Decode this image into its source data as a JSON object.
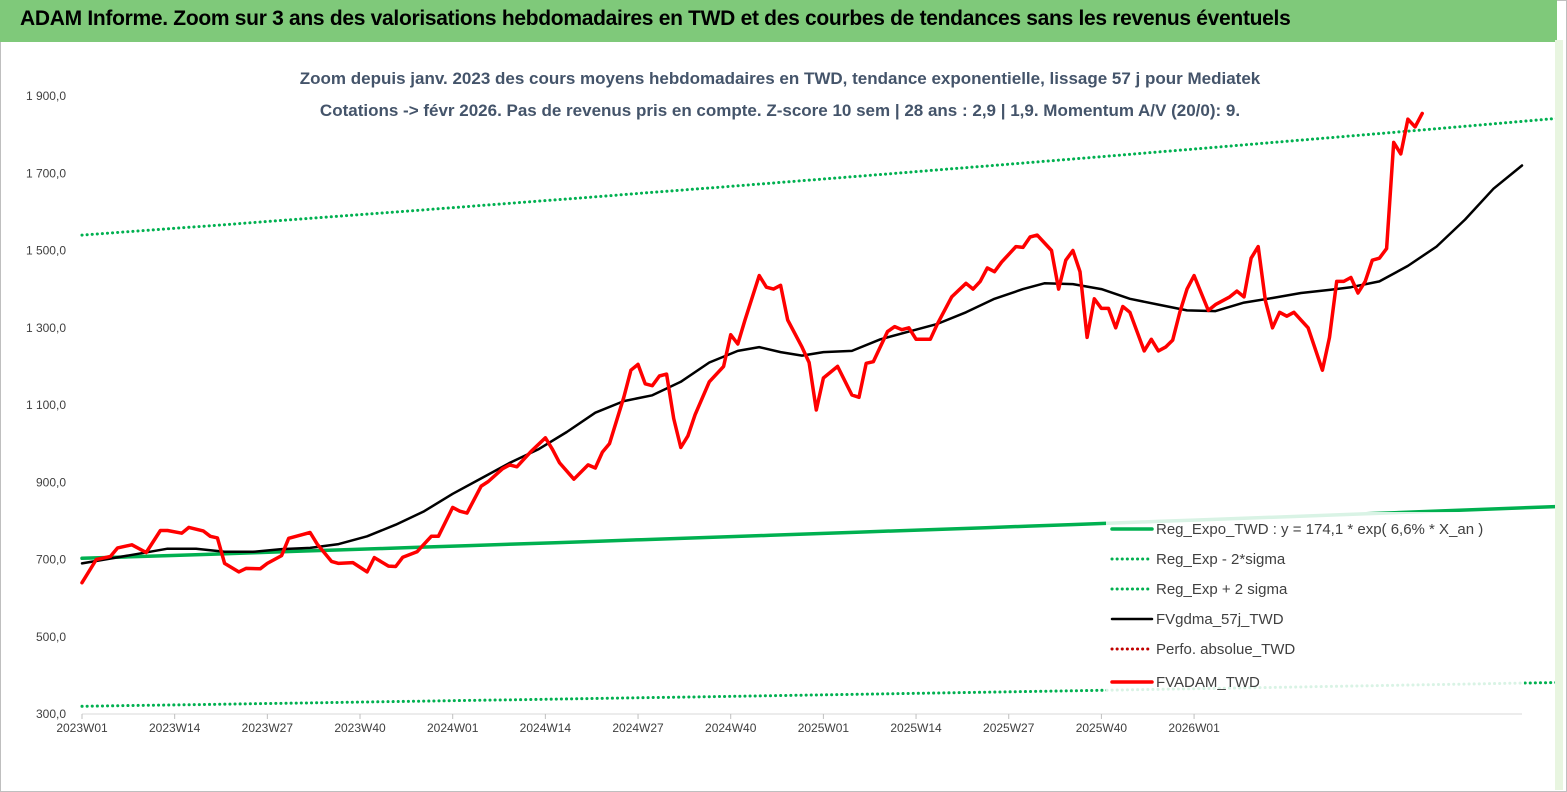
{
  "banner": {
    "title": "ADAM Informe. Zoom sur 3 ans des valorisations hebdomadaires en TWD et des courbes de tendances sans les revenus éventuels"
  },
  "colors": {
    "banner_bg": "#7fc97a",
    "trend_green": "#00b050",
    "price_red": "#ff0000",
    "mma_black": "#000000",
    "perf_dotted_red": "#c00000",
    "subtitle_text": "#44546a"
  },
  "chart_data": {
    "type": "line",
    "subtitle": [
      "Zoom depuis janv. 2023 des cours moyens hebdomadaires en TWD, tendance exponentielle, lissage 57 j pour Mediatek",
      "Cotations -> févr 2026. Pas de revenus pris en compte. Z-score 10 sem | 28 ans : 2,9 | 1,9. Momentum A/V (20/0): 9."
    ],
    "ylim": [
      300,
      1900
    ],
    "y_ticks": [
      "300,0",
      "500,0",
      "700,0",
      "900,0",
      "1 100,0",
      "1 300,0",
      "1 500,0",
      "1 700,0",
      "1 900,0"
    ],
    "x_ticks": [
      "2023W01",
      "2023W14",
      "2023W27",
      "2023W40",
      "2024W01",
      "2024W14",
      "2024W27",
      "2024W40",
      "2025W01",
      "2025W14",
      "2025W27",
      "2025W40",
      "2026W01"
    ],
    "grid": "none",
    "legend_position": "bottom-right",
    "series": [
      {
        "name": "Reg_Expo_TWD : y = 174,1 * exp( 6,6% *  X_an )",
        "style": "solid-thick",
        "color": "#00b050",
        "points": [
          [
            0,
            703
          ],
          [
            169,
            862
          ]
        ]
      },
      {
        "name": "Reg_Exp - 2*sigma",
        "style": "dotted",
        "color": "#00b050",
        "points": [
          [
            0,
            320
          ],
          [
            169,
            393
          ]
        ]
      },
      {
        "name": "Reg_Exp + 2 sigma",
        "style": "dotted",
        "color": "#00b050",
        "points": [
          [
            0,
            1540
          ],
          [
            169,
            1898
          ]
        ]
      },
      {
        "name": "FVgdma_57j_TWD",
        "style": "solid",
        "color": "#000000",
        "points": [
          [
            0,
            690
          ],
          [
            8,
            715
          ],
          [
            12,
            728
          ],
          [
            16,
            728
          ],
          [
            20,
            720
          ],
          [
            24,
            720
          ],
          [
            28,
            727
          ],
          [
            32,
            730
          ],
          [
            36,
            740
          ],
          [
            40,
            760
          ],
          [
            44,
            790
          ],
          [
            48,
            825
          ],
          [
            52,
            870
          ],
          [
            56,
            910
          ],
          [
            60,
            950
          ],
          [
            64,
            985
          ],
          [
            68,
            1030
          ],
          [
            72,
            1080
          ],
          [
            76,
            1110
          ],
          [
            80,
            1125
          ],
          [
            84,
            1160
          ],
          [
            88,
            1210
          ],
          [
            92,
            1240
          ],
          [
            95,
            1250
          ],
          [
            98,
            1237
          ],
          [
            101,
            1228
          ],
          [
            104,
            1237
          ],
          [
            108,
            1240
          ],
          [
            112,
            1270
          ],
          [
            116,
            1290
          ],
          [
            120,
            1310
          ],
          [
            124,
            1340
          ],
          [
            128,
            1375
          ],
          [
            132,
            1400
          ],
          [
            135,
            1415
          ],
          [
            139,
            1413
          ],
          [
            143,
            1400
          ],
          [
            147,
            1375
          ],
          [
            151,
            1360
          ],
          [
            155,
            1345
          ],
          [
            159,
            1343
          ],
          [
            163,
            1365
          ],
          [
            167,
            1377
          ],
          [
            171,
            1390
          ],
          [
            175,
            1398
          ],
          [
            178,
            1405
          ],
          [
            182,
            1420
          ],
          [
            186,
            1460
          ],
          [
            190,
            1510
          ],
          [
            194,
            1580
          ],
          [
            198,
            1660
          ],
          [
            202,
            1720
          ]
        ]
      },
      {
        "name": "Perfo. absolue_TWD",
        "style": "dotted",
        "color": "#c00000",
        "points": []
      },
      {
        "name": "FVADAM_TWD",
        "style": "solid-thick",
        "color": "#ff0000",
        "points": [
          [
            0,
            640
          ],
          [
            2,
            700
          ],
          [
            4,
            708
          ],
          [
            5,
            730
          ],
          [
            7,
            738
          ],
          [
            9,
            718
          ],
          [
            11,
            775
          ],
          [
            12,
            775
          ],
          [
            14,
            768
          ],
          [
            15,
            783
          ],
          [
            17,
            774
          ],
          [
            18,
            760
          ],
          [
            19,
            756
          ],
          [
            20,
            690
          ],
          [
            22,
            668
          ],
          [
            23,
            677
          ],
          [
            25,
            676
          ],
          [
            26,
            690
          ],
          [
            28,
            710
          ],
          [
            29,
            755
          ],
          [
            31,
            765
          ],
          [
            32,
            770
          ],
          [
            33,
            740
          ],
          [
            35,
            695
          ],
          [
            36,
            690
          ],
          [
            38,
            692
          ],
          [
            40,
            668
          ],
          [
            41,
            705
          ],
          [
            43,
            683
          ],
          [
            44,
            682
          ],
          [
            45,
            706
          ],
          [
            47,
            720
          ],
          [
            49,
            760
          ],
          [
            50,
            760
          ],
          [
            52,
            835
          ],
          [
            53,
            825
          ],
          [
            54,
            820
          ],
          [
            56,
            890
          ],
          [
            57,
            902
          ],
          [
            59,
            935
          ],
          [
            60,
            945
          ],
          [
            61,
            940
          ],
          [
            62,
            960
          ],
          [
            63,
            980
          ],
          [
            65,
            1015
          ],
          [
            66,
            985
          ],
          [
            67,
            950
          ],
          [
            69,
            908
          ],
          [
            71,
            945
          ],
          [
            72,
            937
          ],
          [
            73,
            978
          ],
          [
            74,
            1000
          ],
          [
            76,
            1120
          ],
          [
            77,
            1190
          ],
          [
            78,
            1205
          ],
          [
            79,
            1155
          ],
          [
            80,
            1150
          ],
          [
            81,
            1175
          ],
          [
            82,
            1180
          ],
          [
            83,
            1065
          ],
          [
            84,
            990
          ],
          [
            85,
            1020
          ],
          [
            86,
            1075
          ],
          [
            88,
            1160
          ],
          [
            90,
            1200
          ],
          [
            91,
            1282
          ],
          [
            92,
            1258
          ],
          [
            93,
            1320
          ],
          [
            95,
            1435
          ],
          [
            96,
            1405
          ],
          [
            97,
            1400
          ],
          [
            98,
            1410
          ],
          [
            99,
            1320
          ],
          [
            101,
            1250
          ],
          [
            102,
            1210
          ],
          [
            103,
            1087
          ],
          [
            104,
            1170
          ],
          [
            106,
            1200
          ],
          [
            108,
            1126
          ],
          [
            109,
            1120
          ],
          [
            110,
            1208
          ],
          [
            111,
            1212
          ],
          [
            113,
            1290
          ],
          [
            114,
            1303
          ],
          [
            115,
            1295
          ],
          [
            116,
            1300
          ],
          [
            117,
            1270
          ],
          [
            118,
            1270
          ],
          [
            119,
            1270
          ],
          [
            120,
            1310
          ],
          [
            122,
            1380
          ],
          [
            124,
            1415
          ],
          [
            125,
            1400
          ],
          [
            126,
            1420
          ],
          [
            127,
            1455
          ],
          [
            128,
            1445
          ],
          [
            129,
            1470
          ],
          [
            130,
            1490
          ],
          [
            131,
            1510
          ],
          [
            132,
            1508
          ],
          [
            133,
            1535
          ],
          [
            134,
            1540
          ],
          [
            136,
            1500
          ],
          [
            137,
            1400
          ],
          [
            138,
            1475
          ],
          [
            139,
            1500
          ],
          [
            140,
            1445
          ],
          [
            141,
            1275
          ],
          [
            142,
            1375
          ],
          [
            143,
            1350
          ],
          [
            144,
            1350
          ],
          [
            145,
            1300
          ],
          [
            146,
            1355
          ],
          [
            147,
            1340
          ],
          [
            149,
            1240
          ],
          [
            150,
            1270
          ],
          [
            151,
            1240
          ],
          [
            152,
            1250
          ],
          [
            153,
            1268
          ],
          [
            154,
            1340
          ],
          [
            155,
            1400
          ],
          [
            156,
            1435
          ],
          [
            157,
            1390
          ],
          [
            158,
            1345
          ],
          [
            159,
            1360
          ],
          [
            161,
            1380
          ],
          [
            162,
            1395
          ],
          [
            163,
            1380
          ],
          [
            164,
            1480
          ],
          [
            165,
            1510
          ],
          [
            166,
            1370
          ],
          [
            167,
            1300
          ],
          [
            168,
            1340
          ],
          [
            169,
            1330
          ],
          [
            170,
            1340
          ],
          [
            172,
            1300
          ],
          [
            174,
            1190
          ],
          [
            175,
            1275
          ],
          [
            176,
            1420
          ],
          [
            177,
            1420
          ],
          [
            178,
            1430
          ],
          [
            179,
            1390
          ],
          [
            180,
            1420
          ],
          [
            181,
            1475
          ],
          [
            182,
            1480
          ],
          [
            183,
            1505
          ],
          [
            184,
            1780
          ],
          [
            185,
            1750
          ],
          [
            186,
            1840
          ],
          [
            187,
            1820
          ],
          [
            188,
            1855
          ]
        ]
      }
    ]
  }
}
